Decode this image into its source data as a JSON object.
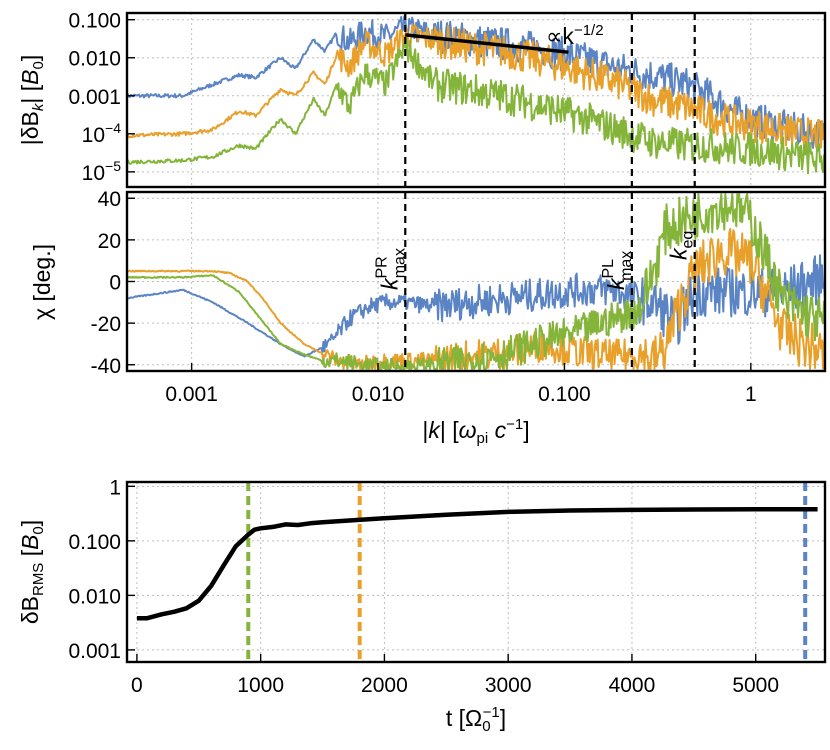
{
  "colors": {
    "blue": "#5b84c4",
    "orange": "#e8a02a",
    "green": "#84b53a",
    "black": "#000000"
  },
  "chart_data": [
    {
      "id": "spectrum",
      "type": "line",
      "ylabel": "|δB_k| [B_0]",
      "x_scale": "log",
      "y_scale": "log",
      "xlim": [
        0.00045,
        2.5
      ],
      "ylim": [
        4e-06,
        0.15
      ],
      "yticks": [
        {
          "v": 0.1,
          "label": "0.100"
        },
        {
          "v": 0.01,
          "label": "0.010"
        },
        {
          "v": 0.001,
          "label": "0.001"
        },
        {
          "v": 0.0001,
          "label": "10",
          "sup": "−4"
        },
        {
          "v": 1e-05,
          "label": "10",
          "sup": "−5"
        }
      ],
      "series": [
        {
          "name": "blue",
          "color": "#5b84c4",
          "x": [
            0.00045,
            0.0009,
            0.0013,
            0.0018,
            0.0022,
            0.003,
            0.0036,
            0.0045,
            0.0052,
            0.006,
            0.007,
            0.0085,
            0.011,
            0.014,
            0.02,
            0.03,
            0.05,
            0.08,
            0.13,
            0.2,
            0.3,
            0.45,
            0.6,
            0.8,
            1.0,
            1.5,
            2.5
          ],
          "y": [
            0.001,
            0.001,
            0.002,
            0.0035,
            0.003,
            0.01,
            0.005,
            0.03,
            0.015,
            0.045,
            0.025,
            0.05,
            0.035,
            0.06,
            0.04,
            0.03,
            0.022,
            0.016,
            0.009,
            0.005,
            0.0035,
            0.002,
            0.001,
            0.0004,
            0.00025,
            0.00015,
            9e-05
          ]
        },
        {
          "name": "orange",
          "color": "#e8a02a",
          "x": [
            0.00045,
            0.0009,
            0.0013,
            0.0018,
            0.0022,
            0.003,
            0.0036,
            0.0045,
            0.0052,
            0.006,
            0.007,
            0.0085,
            0.011,
            0.014,
            0.02,
            0.03,
            0.05,
            0.08,
            0.13,
            0.2,
            0.3,
            0.45,
            0.6,
            0.8,
            1.0,
            1.5,
            2.5
          ],
          "y": [
            9e-05,
            0.0001,
            0.00013,
            0.0004,
            0.0003,
            0.0015,
            0.001,
            0.004,
            0.002,
            0.012,
            0.006,
            0.025,
            0.012,
            0.04,
            0.03,
            0.02,
            0.014,
            0.008,
            0.004,
            0.002,
            0.0008,
            0.0005,
            0.0003,
            0.0002,
            0.00018,
            0.00012,
            8e-05
          ]
        },
        {
          "name": "green",
          "color": "#84b53a",
          "x": [
            0.00045,
            0.0009,
            0.0013,
            0.0018,
            0.0022,
            0.003,
            0.0036,
            0.0045,
            0.0052,
            0.006,
            0.007,
            0.0085,
            0.011,
            0.014,
            0.02,
            0.03,
            0.05,
            0.08,
            0.13,
            0.2,
            0.3,
            0.45,
            0.6,
            0.8,
            1.0,
            1.5,
            2.5
          ],
          "y": [
            1.8e-05,
            2e-05,
            2.5e-05,
            5e-05,
            4e-05,
            0.00025,
            0.0001,
            0.0008,
            0.0003,
            0.002,
            0.0005,
            0.004,
            0.002,
            0.02,
            0.002,
            0.0015,
            0.0009,
            0.0005,
            0.00025,
            0.00012,
            6e-05,
            5e-05,
            5e-05,
            4e-05,
            4e-05,
            3e-05,
            2e-05
          ]
        }
      ],
      "fit_line": {
        "x": [
          0.014,
          0.105
        ],
        "y": [
          0.04,
          0.014
        ],
        "label": "∝k",
        "sup": "−1/2"
      }
    },
    {
      "id": "chi",
      "type": "line",
      "ylabel": "χ [deg.]",
      "xlabel": "|k| [ω_pi c^−1]",
      "x_scale": "log",
      "xlim": [
        0.00045,
        2.5
      ],
      "ylim": [
        -43,
        43
      ],
      "yticks": [
        40,
        20,
        0,
        -20,
        -40
      ],
      "xticks": [
        {
          "v": 0.001,
          "label": "0.001"
        },
        {
          "v": 0.01,
          "label": "0.010"
        },
        {
          "v": 0.1,
          "label": "0.100"
        },
        {
          "v": 1,
          "label": "1"
        }
      ],
      "series": [
        {
          "name": "blue",
          "color": "#5b84c4",
          "x": [
            0.00045,
            0.0009,
            0.0013,
            0.002,
            0.003,
            0.004,
            0.0055,
            0.007,
            0.009,
            0.011,
            0.014,
            0.02,
            0.03,
            0.05,
            0.08,
            0.12,
            0.18,
            0.25,
            0.3,
            0.4,
            0.5,
            0.7,
            1.0,
            1.5,
            2.5
          ],
          "y": [
            -8,
            -4,
            -10,
            -20,
            -30,
            -36,
            -30,
            -18,
            -12,
            -10,
            -10,
            -12,
            -10,
            -8,
            -6,
            -4,
            -4,
            -8,
            -10,
            -20,
            -5,
            -5,
            -5,
            -5,
            2
          ]
        },
        {
          "name": "orange",
          "color": "#e8a02a",
          "x": [
            0.00045,
            0.0009,
            0.0013,
            0.0016,
            0.002,
            0.0025,
            0.003,
            0.004,
            0.006,
            0.008,
            0.011,
            0.014,
            0.02,
            0.03,
            0.05,
            0.08,
            0.12,
            0.18,
            0.25,
            0.3,
            0.35,
            0.4,
            0.5,
            0.7,
            1.0,
            1.5,
            2.5
          ],
          "y": [
            5,
            5,
            5,
            4,
            0,
            -10,
            -20,
            -30,
            -38,
            -40,
            -38,
            -38,
            -38,
            -36,
            -34,
            -30,
            -34,
            -36,
            -35,
            -38,
            -32,
            -15,
            5,
            15,
            10,
            -25,
            -35
          ]
        },
        {
          "name": "green",
          "color": "#84b53a",
          "x": [
            0.00045,
            0.0009,
            0.0013,
            0.0018,
            0.0022,
            0.003,
            0.004,
            0.005,
            0.006,
            0.008,
            0.011,
            0.014,
            0.02,
            0.03,
            0.05,
            0.08,
            0.12,
            0.18,
            0.25,
            0.3,
            0.35,
            0.45,
            0.6,
            0.8,
            1.0,
            1.5,
            2.5
          ],
          "y": [
            2,
            2,
            3,
            -5,
            -15,
            -30,
            -35,
            -38,
            -38,
            -40,
            -41,
            -41,
            -40,
            -38,
            -34,
            -28,
            -24,
            -18,
            -14,
            5,
            25,
            30,
            35,
            38,
            30,
            -10,
            -20
          ]
        }
      ],
      "markers": [
        {
          "v": 0.014,
          "label": "k",
          "sup": "PR",
          "sub": "max"
        },
        {
          "v": 0.23,
          "label": "k",
          "sup": "PL",
          "sub": "max"
        },
        {
          "v": 0.5,
          "label": "k",
          "sub": "eq"
        }
      ]
    },
    {
      "id": "rms",
      "type": "line",
      "ylabel": "δB_RMS [B_0]",
      "xlabel": "t [Ω_0^−1]",
      "y_scale": "log",
      "xlim": [
        -80,
        5560
      ],
      "ylim": [
        0.0006,
        1.2
      ],
      "yticks": [
        {
          "v": 1,
          "label": "1"
        },
        {
          "v": 0.1,
          "label": "0.100"
        },
        {
          "v": 0.01,
          "label": "0.010"
        },
        {
          "v": 0.001,
          "label": "0.001"
        }
      ],
      "xticks": [
        0,
        1000,
        2000,
        3000,
        4000,
        5000
      ],
      "series": [
        {
          "name": "rms",
          "color": "#000000",
          "x": [
            0,
            80,
            200,
            300,
            400,
            500,
            600,
            700,
            800,
            900,
            950,
            1000,
            1100,
            1200,
            1300,
            1400,
            1500,
            2000,
            2500,
            3000,
            3500,
            4000,
            4500,
            5000,
            5400,
            5500
          ],
          "y": [
            0.0038,
            0.0038,
            0.0045,
            0.005,
            0.0058,
            0.008,
            0.015,
            0.035,
            0.08,
            0.13,
            0.16,
            0.17,
            0.18,
            0.2,
            0.195,
            0.21,
            0.22,
            0.26,
            0.3,
            0.34,
            0.36,
            0.37,
            0.375,
            0.38,
            0.38,
            0.38
          ]
        }
      ],
      "time_markers": [
        {
          "v": 900,
          "color": "#84b53a"
        },
        {
          "v": 1800,
          "color": "#e8a02a"
        },
        {
          "v": 5400,
          "color": "#5b84c4"
        }
      ]
    }
  ],
  "text": {
    "ylabel1_main": "|δB",
    "ylabel1_sub": "k",
    "ylabel1_tail": "| [",
    "ylabel1_b": "B",
    "ylabel1_bsub": "0",
    "ylabel1_end": "]",
    "ylabel2": "χ [deg.]",
    "xlabel_mid_a": "|",
    "xlabel_mid_k": "k",
    "xlabel_mid_b": "| [",
    "xlabel_mid_w": "ω",
    "xlabel_mid_pi": "pi",
    "xlabel_mid_c": " c",
    "xlabel_mid_exp": "−1",
    "xlabel_mid_end": "]",
    "ylabel3_main": "δB",
    "ylabel3_sub": "RMS",
    "ylabel3_tail": " [",
    "ylabel3_b": "B",
    "ylabel3_bsub": "0",
    "ylabel3_end": "]",
    "xlabel_bot_main": "t [Ω",
    "xlabel_bot_sub": "0",
    "xlabel_bot_sup": "−1",
    "xlabel_bot_end": "]"
  }
}
